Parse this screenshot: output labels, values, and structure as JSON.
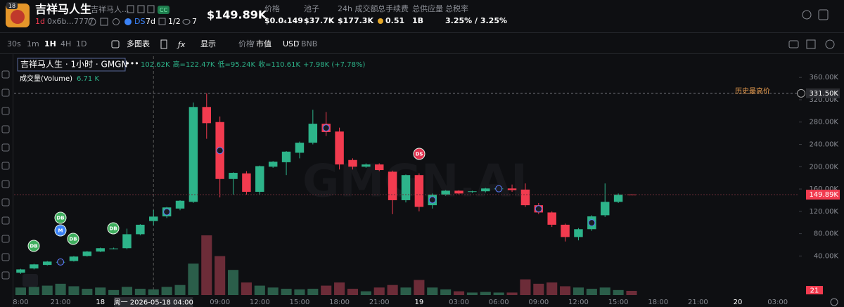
{
  "header": {
    "logo_badge": "18",
    "title": "吉祥马人生",
    "subtitle": "吉祥马人...",
    "badge": "CC",
    "age": "1d",
    "address": "0x6b...7777",
    "ds": "DS",
    "ds_age": "7d",
    "holders_ratio": "1/2",
    "watchers": "7",
    "market_cap": "$149.89K",
    "stats": [
      {
        "label": "价格",
        "value": "$0.0₄149"
      },
      {
        "label": "池子",
        "value": "$37.7K"
      },
      {
        "label": "24h 成交额",
        "value": "$177.3K"
      },
      {
        "label": "总手续费",
        "value": "0.51"
      },
      {
        "label": "总供应量",
        "value": "1B"
      },
      {
        "label": "总税率",
        "value": "3.25% / 3.25%"
      }
    ]
  },
  "toolbar": {
    "intervals": [
      "30s",
      "1m",
      "1H",
      "4H",
      "1D"
    ],
    "multi_chart": "多图表",
    "display": "显示",
    "price": "价格",
    "market_cap": "市值",
    "usd": "USD",
    "bnb": "BNB"
  },
  "chart_data": {
    "type": "candlestick",
    "title": "吉祥马人生 · 1小时 · GMGN",
    "legend_ohlc": [
      "102.62K",
      "高=122.47K",
      "低=95.24K",
      "收=110.61K",
      "+7.98K (+7.78%)"
    ],
    "volume_label": "成交量(Volume)",
    "volume_value": "6.71 K",
    "watermark": "GMGN.AI",
    "categories": [
      "8:00",
      null,
      null,
      "21:00",
      null,
      null,
      "18",
      null,
      null,
      null,
      null,
      null,
      null,
      null,
      null,
      "09:00",
      null,
      null,
      "12:00",
      null,
      null,
      "15:00",
      null,
      null,
      "18:00",
      null,
      null,
      "21:00",
      null,
      null,
      "19",
      null,
      null,
      "03:00",
      null,
      null,
      "06:00",
      null,
      null,
      "09:00",
      null,
      null,
      "12:00",
      null,
      null,
      "15:00",
      null,
      null,
      "18:00",
      null,
      null,
      "21:00",
      null,
      null,
      "20",
      null,
      null,
      "03:00"
    ],
    "open": [
      10000,
      17600,
      24000,
      29000,
      31000,
      40000,
      48000,
      53000,
      54000,
      79000,
      102620,
      111000,
      125000,
      137000,
      307000,
      280000,
      178000,
      188000,
      155000,
      200000,
      208000,
      225000,
      243000,
      277000,
      263000,
      212000,
      200000,
      204000,
      191000,
      140000,
      185000,
      131000,
      150000,
      157000,
      155000,
      156000,
      160000,
      161000,
      159000,
      131000,
      118000,
      96000,
      74000,
      88000,
      113000,
      137000,
      150000,
      null,
      null,
      null,
      null,
      null,
      null,
      null,
      null,
      null,
      null,
      null
    ],
    "high": [
      17000,
      26000,
      31000,
      33000,
      40000,
      49000,
      55000,
      55000,
      89000,
      97000,
      122470,
      128000,
      140000,
      315000,
      331500,
      290000,
      190000,
      192000,
      202000,
      210000,
      228000,
      245000,
      302000,
      298000,
      270000,
      215000,
      206000,
      206000,
      193000,
      186000,
      188000,
      152000,
      158000,
      158000,
      157000,
      162000,
      162000,
      168000,
      170000,
      135000,
      120000,
      98000,
      90000,
      113000,
      170000,
      152000,
      150500,
      null,
      null,
      null,
      null,
      null,
      null,
      null,
      null,
      null,
      null,
      null
    ],
    "low": [
      8000,
      16000,
      23000,
      27000,
      30000,
      39000,
      47000,
      52000,
      52000,
      77000,
      95240,
      108000,
      122000,
      135000,
      250000,
      145000,
      150000,
      150000,
      150000,
      198000,
      185000,
      215000,
      240000,
      255000,
      195000,
      195000,
      198000,
      192000,
      115000,
      136000,
      120000,
      125000,
      148000,
      150000,
      153000,
      154000,
      158000,
      155000,
      128000,
      115000,
      92000,
      66000,
      68000,
      85000,
      110000,
      135000,
      149500,
      null,
      null,
      null,
      null,
      null,
      null,
      null,
      null,
      null,
      null,
      null
    ],
    "close": [
      16000,
      25000,
      30000,
      29500,
      39000,
      48000,
      54000,
      53500,
      79000,
      96000,
      110610,
      127000,
      139000,
      307000,
      278000,
      178000,
      189000,
      155000,
      201000,
      209000,
      227000,
      243000,
      277000,
      262000,
      204000,
      200000,
      204000,
      194000,
      140000,
      185000,
      128000,
      150000,
      157000,
      152000,
      156000,
      161000,
      161000,
      158000,
      131000,
      118000,
      96000,
      74000,
      88000,
      111000,
      137000,
      150000,
      149890,
      null,
      null,
      null,
      null,
      null,
      null,
      null,
      null,
      null,
      null,
      null
    ],
    "volume": [
      12000,
      13000,
      15000,
      18000,
      14000,
      10000,
      12000,
      8000,
      13000,
      10000,
      9000,
      13000,
      16000,
      50000,
      95000,
      62000,
      40000,
      20000,
      15000,
      12000,
      10000,
      9000,
      10000,
      15000,
      20000,
      10000,
      6000,
      12000,
      16000,
      12000,
      24000,
      12000,
      9000,
      6000,
      4000,
      5000,
      4000,
      4000,
      25000,
      18000,
      20000,
      14000,
      12000,
      10000,
      12000,
      8000,
      6710,
      null,
      null,
      null,
      null,
      null,
      null,
      null,
      null,
      null,
      null,
      null
    ],
    "up_color": "#2db48a",
    "down_color": "#f23b4f",
    "up_volume_color": "#2b5e4a",
    "down_volume_color": "#6c2c38",
    "ylim": [
      -30000,
      398000
    ],
    "yticks": [
      {
        "value": 40000,
        "label": "40.00K"
      },
      {
        "value": 80000,
        "label": "80.00K"
      },
      {
        "value": 120000,
        "label": "120.00K"
      },
      {
        "value": 160000,
        "label": "160.00K"
      },
      {
        "value": 200000,
        "label": "200.00K"
      },
      {
        "value": 240000,
        "label": "240.00K"
      },
      {
        "value": 280000,
        "label": "280.00K"
      },
      {
        "value": 320000,
        "label": "320.00K"
      },
      {
        "value": 360000,
        "label": "360.00K"
      }
    ],
    "ath": {
      "value": 331500,
      "label": "331.50K",
      "text": "历史最高价"
    },
    "current": {
      "value": 149890,
      "label": "149.89K"
    },
    "crosshair_label": "周一 2026-05-18 04:00",
    "countdown": "21",
    "annotations": [
      "DB",
      "M",
      "DB",
      "DB",
      "DB",
      "DS"
    ]
  }
}
